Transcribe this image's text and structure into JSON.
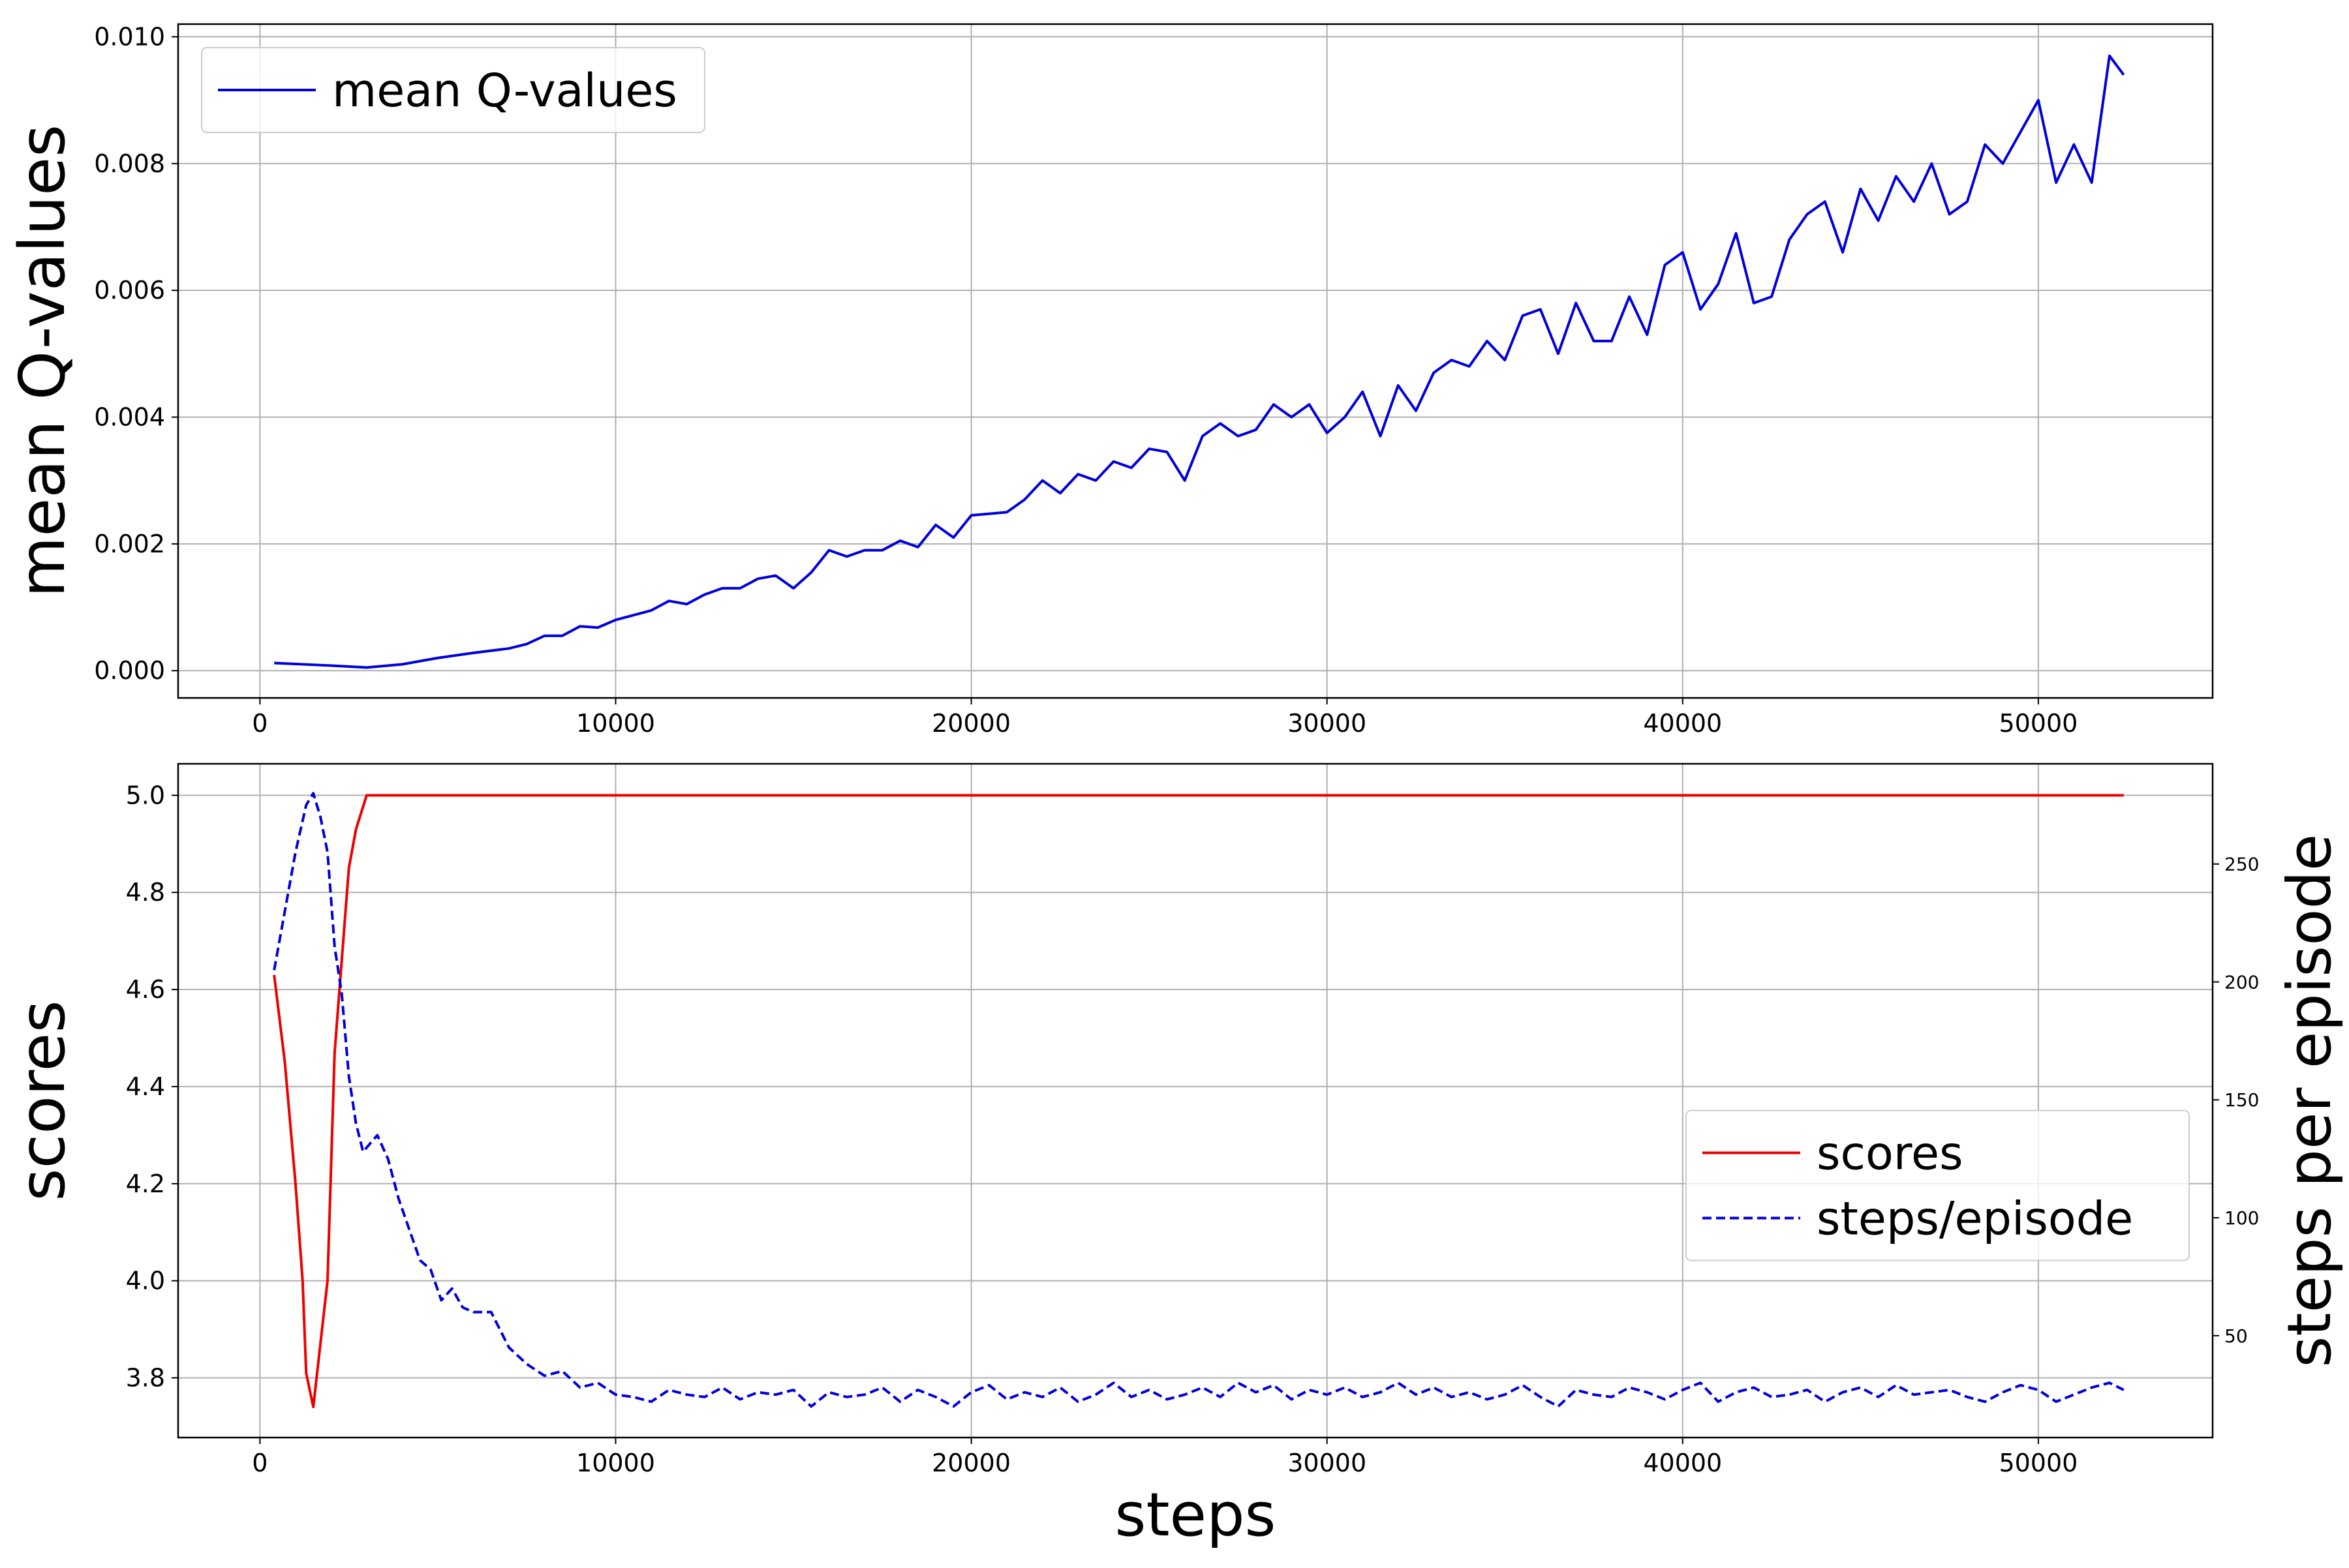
{
  "chart_data": [
    {
      "type": "line",
      "ylabel": "mean Q-values",
      "legend": "upper left",
      "grid": true,
      "xlim": [
        -2300,
        54900
      ],
      "ylim": [
        -0.00043,
        0.0102
      ],
      "xticks": [
        0,
        10000,
        20000,
        30000,
        40000,
        50000
      ],
      "yticks": [
        {
          "value": 0,
          "label": "0.000"
        },
        {
          "value": 0.002,
          "label": "0.002"
        },
        {
          "value": 0.004,
          "label": "0.004"
        },
        {
          "value": 0.006,
          "label": "0.006"
        },
        {
          "value": 0.008,
          "label": "0.008"
        },
        {
          "value": 0.01,
          "label": "0.010"
        }
      ],
      "series": [
        {
          "name": "mean Q-values",
          "color": "#0000dd",
          "linestyle": "solid",
          "x": [
            400,
            2000,
            3000,
            4000,
            5000,
            6000,
            7000,
            7500,
            8000,
            8500,
            9000,
            9500,
            10000,
            11000,
            11500,
            12000,
            12500,
            13000,
            13500,
            14000,
            14500,
            15000,
            15500,
            16000,
            16500,
            17000,
            17500,
            18000,
            18500,
            19000,
            19500,
            20000,
            21000,
            21500,
            22000,
            22500,
            23000,
            23500,
            24000,
            24500,
            25000,
            25500,
            26000,
            26500,
            27000,
            27500,
            28000,
            28500,
            29000,
            29500,
            30000,
            30500,
            31000,
            31500,
            32000,
            32500,
            33000,
            33500,
            34000,
            34500,
            35000,
            35500,
            36000,
            36500,
            37000,
            37500,
            38000,
            38500,
            39000,
            39500,
            40000,
            40500,
            41000,
            41500,
            42000,
            42500,
            43000,
            43500,
            44000,
            44500,
            45000,
            45500,
            46000,
            46500,
            47000,
            47500,
            48000,
            48500,
            49000,
            49500,
            50000,
            50500,
            51000,
            51500,
            52000,
            52400
          ],
          "values": [
            0.00012,
            8e-05,
            5e-05,
            0.0001,
            0.0002,
            0.00028,
            0.00035,
            0.00042,
            0.00055,
            0.00055,
            0.0007,
            0.00068,
            0.0008,
            0.00095,
            0.0011,
            0.00105,
            0.0012,
            0.0013,
            0.0013,
            0.00145,
            0.0015,
            0.0013,
            0.00155,
            0.0019,
            0.0018,
            0.0019,
            0.0019,
            0.00205,
            0.00195,
            0.0023,
            0.0021,
            0.00245,
            0.0025,
            0.0027,
            0.003,
            0.0028,
            0.0031,
            0.003,
            0.0033,
            0.0032,
            0.0035,
            0.00345,
            0.003,
            0.0037,
            0.0039,
            0.0037,
            0.0038,
            0.0042,
            0.004,
            0.0042,
            0.00375,
            0.004,
            0.0044,
            0.0037,
            0.0045,
            0.0041,
            0.0047,
            0.0049,
            0.0048,
            0.0052,
            0.0049,
            0.0056,
            0.0057,
            0.005,
            0.0058,
            0.0052,
            0.0052,
            0.0059,
            0.0053,
            0.0064,
            0.0066,
            0.0057,
            0.0061,
            0.0069,
            0.0058,
            0.0059,
            0.0068,
            0.0072,
            0.0074,
            0.0066,
            0.0076,
            0.0071,
            0.0078,
            0.0074,
            0.008,
            0.0072,
            0.0074,
            0.0083,
            0.008,
            0.0085,
            0.009,
            0.0077,
            0.0083,
            0.0077,
            0.0097,
            0.0094
          ]
        }
      ]
    },
    {
      "type": "line",
      "xlabel": "steps",
      "ylabel": "scores",
      "y2label": "steps per episode",
      "legend": "center right",
      "grid": true,
      "xlim": [
        -2300,
        54900
      ],
      "ylim": [
        3.677,
        5.065
      ],
      "y2lim": [
        6.8,
        292.5
      ],
      "xticks": [
        0,
        10000,
        20000,
        30000,
        40000,
        50000
      ],
      "yticks": [
        3.8,
        {
          "value": 4,
          "label": "4.0"
        },
        4.2,
        4.4,
        4.6,
        4.8,
        {
          "value": 5,
          "label": "5.0"
        }
      ],
      "y2ticks": [
        50,
        100,
        150,
        200,
        250
      ],
      "series": [
        {
          "name": "scores",
          "color": "#ee0000",
          "linestyle": "solid",
          "x": [
            400,
            700,
            1000,
            1200,
            1300,
            1500,
            1900,
            2100,
            2500,
            2700,
            3000,
            52400
          ],
          "values": [
            4.63,
            4.45,
            4.2,
            4.0,
            3.81,
            3.74,
            4.0,
            4.47,
            4.85,
            4.93,
            5.0,
            5.0
          ]
        },
        {
          "name": "steps/episode",
          "color": "#0000dd",
          "linestyle": "dashed",
          "axis": "y2",
          "x": [
            400,
            700,
            1000,
            1300,
            1500,
            1700,
            1900,
            2100,
            2300,
            2500,
            2700,
            2900,
            3300,
            3600,
            3900,
            4200,
            4500,
            4800,
            5100,
            5400,
            5700,
            6000,
            6500,
            7000,
            7500,
            8000,
            8500,
            9000,
            9500,
            10000,
            10500,
            11000,
            11500,
            12000,
            12500,
            13000,
            13500,
            14000,
            14500,
            15000,
            15500,
            16000,
            16500,
            17000,
            17500,
            18000,
            18500,
            19000,
            19500,
            20000,
            20500,
            21000,
            21500,
            22000,
            22500,
            23000,
            23500,
            24000,
            24500,
            25000,
            25500,
            26000,
            26500,
            27000,
            27500,
            28000,
            28500,
            29000,
            29500,
            30000,
            30500,
            31000,
            31500,
            32000,
            32500,
            33000,
            33500,
            34000,
            34500,
            35000,
            35500,
            36000,
            36500,
            37000,
            37500,
            38000,
            38500,
            39000,
            39500,
            40000,
            40500,
            41000,
            41500,
            42000,
            42500,
            43000,
            43500,
            44000,
            44500,
            45000,
            45500,
            46000,
            46500,
            47000,
            47500,
            48000,
            48500,
            49000,
            49500,
            50000,
            50500,
            51000,
            51500,
            52000,
            52400
          ],
          "values": [
            205,
            230,
            255,
            275,
            280,
            270,
            255,
            215,
            195,
            160,
            140,
            128,
            135,
            125,
            108,
            95,
            82,
            78,
            65,
            70,
            62,
            60,
            60,
            45,
            38,
            33,
            35,
            28,
            30,
            25,
            24,
            22,
            27,
            25,
            24,
            28,
            23,
            26,
            25,
            27,
            20,
            26,
            24,
            25,
            28,
            22,
            27,
            24,
            20,
            26,
            29,
            23,
            26,
            24,
            28,
            22,
            25,
            30,
            24,
            27,
            23,
            25,
            28,
            24,
            30,
            26,
            29,
            23,
            27,
            25,
            28,
            24,
            26,
            30,
            25,
            28,
            24,
            26,
            23,
            25,
            29,
            24,
            20,
            27,
            25,
            24,
            28,
            26,
            23,
            27,
            30,
            22,
            26,
            28,
            24,
            25,
            27,
            22,
            26,
            28,
            24,
            29,
            25,
            26,
            27,
            24,
            22,
            26,
            29,
            27,
            22,
            25,
            28,
            30,
            27
          ]
        }
      ]
    }
  ]
}
